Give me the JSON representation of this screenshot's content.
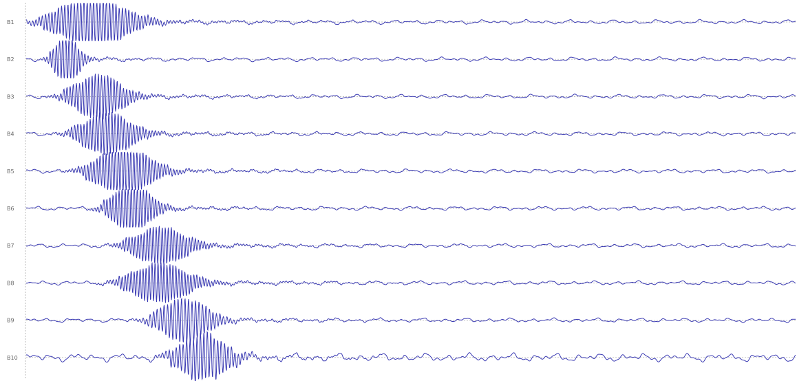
{
  "chart_data": {
    "type": "line",
    "title": "",
    "xlabel": "",
    "ylabel": "",
    "grid": false,
    "legend": "none",
    "channels": [
      "B1",
      "B2",
      "B3",
      "B4",
      "B5",
      "B6",
      "B7",
      "B8",
      "B9",
      "B10"
    ],
    "series": [
      {
        "label": "B1",
        "onset_ms": 20,
        "burst_width_ms": 160,
        "peak_amplitude": 1.0,
        "clipped": true
      },
      {
        "label": "B2",
        "onset_ms": 30,
        "burst_width_ms": 55,
        "peak_amplitude": 1.0,
        "clipped": true
      },
      {
        "label": "B3",
        "onset_ms": 48,
        "burst_width_ms": 110,
        "peak_amplitude": 0.9,
        "clipped": false
      },
      {
        "label": "B4",
        "onset_ms": 58,
        "burst_width_ms": 115,
        "peak_amplitude": 0.85,
        "clipped": false
      },
      {
        "label": "B5",
        "onset_ms": 75,
        "burst_width_ms": 125,
        "peak_amplitude": 1.0,
        "clipped": true
      },
      {
        "label": "B6",
        "onset_ms": 100,
        "burst_width_ms": 90,
        "peak_amplitude": 1.0,
        "clipped": true
      },
      {
        "label": "B7",
        "onset_ms": 125,
        "burst_width_ms": 120,
        "peak_amplitude": 0.75,
        "clipped": false
      },
      {
        "label": "B8",
        "onset_ms": 120,
        "burst_width_ms": 130,
        "peak_amplitude": 0.8,
        "clipped": false
      },
      {
        "label": "B9",
        "onset_ms": 160,
        "burst_width_ms": 110,
        "peak_amplitude": 0.9,
        "clipped": false
      },
      {
        "label": "B10",
        "onset_ms": 185,
        "burst_width_ms": 110,
        "peak_amplitude": 0.95,
        "clipped": false
      }
    ],
    "colors": {
      "trace": "#3b3bb3",
      "baseline": "#aaaaaa",
      "axis": "#bbbbbb",
      "label": "#666666"
    }
  }
}
